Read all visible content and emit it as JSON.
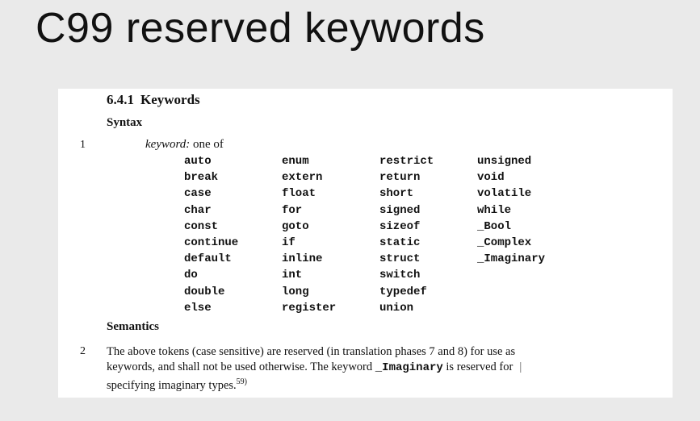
{
  "slide": {
    "title": "C99 reserved keywords"
  },
  "section": {
    "number": "6.4.1",
    "title": "Keywords",
    "syntax_heading": "Syntax",
    "syntax_para_num": "1",
    "keyword_label": "keyword:",
    "keyword_one_of": "one of",
    "keyword_columns": [
      [
        "auto",
        "break",
        "case",
        "char",
        "const",
        "continue",
        "default",
        "do",
        "double",
        "else"
      ],
      [
        "enum",
        "extern",
        "float",
        "for",
        "goto",
        "if",
        "inline",
        "int",
        "long",
        "register"
      ],
      [
        "restrict",
        "return",
        "short",
        "signed",
        "sizeof",
        "static",
        "struct",
        "switch",
        "typedef",
        "union"
      ],
      [
        "unsigned",
        "void",
        "volatile",
        "while",
        "_Bool",
        "_Complex",
        "_Imaginary"
      ]
    ],
    "semantics_heading": "Semantics",
    "semantics_para_num": "2",
    "semantics_line1": "The above tokens (case sensitive) are reserved (in translation phases 7 and 8) for use as",
    "semantics_line2_a": "keywords, and shall not be used otherwise.  The keyword ",
    "semantics_line2_code": "_Imaginary",
    "semantics_line2_b": " is reserved for",
    "change_bar": "|",
    "semantics_line3": "specifying imaginary types.",
    "footnote_ref": "59)"
  }
}
